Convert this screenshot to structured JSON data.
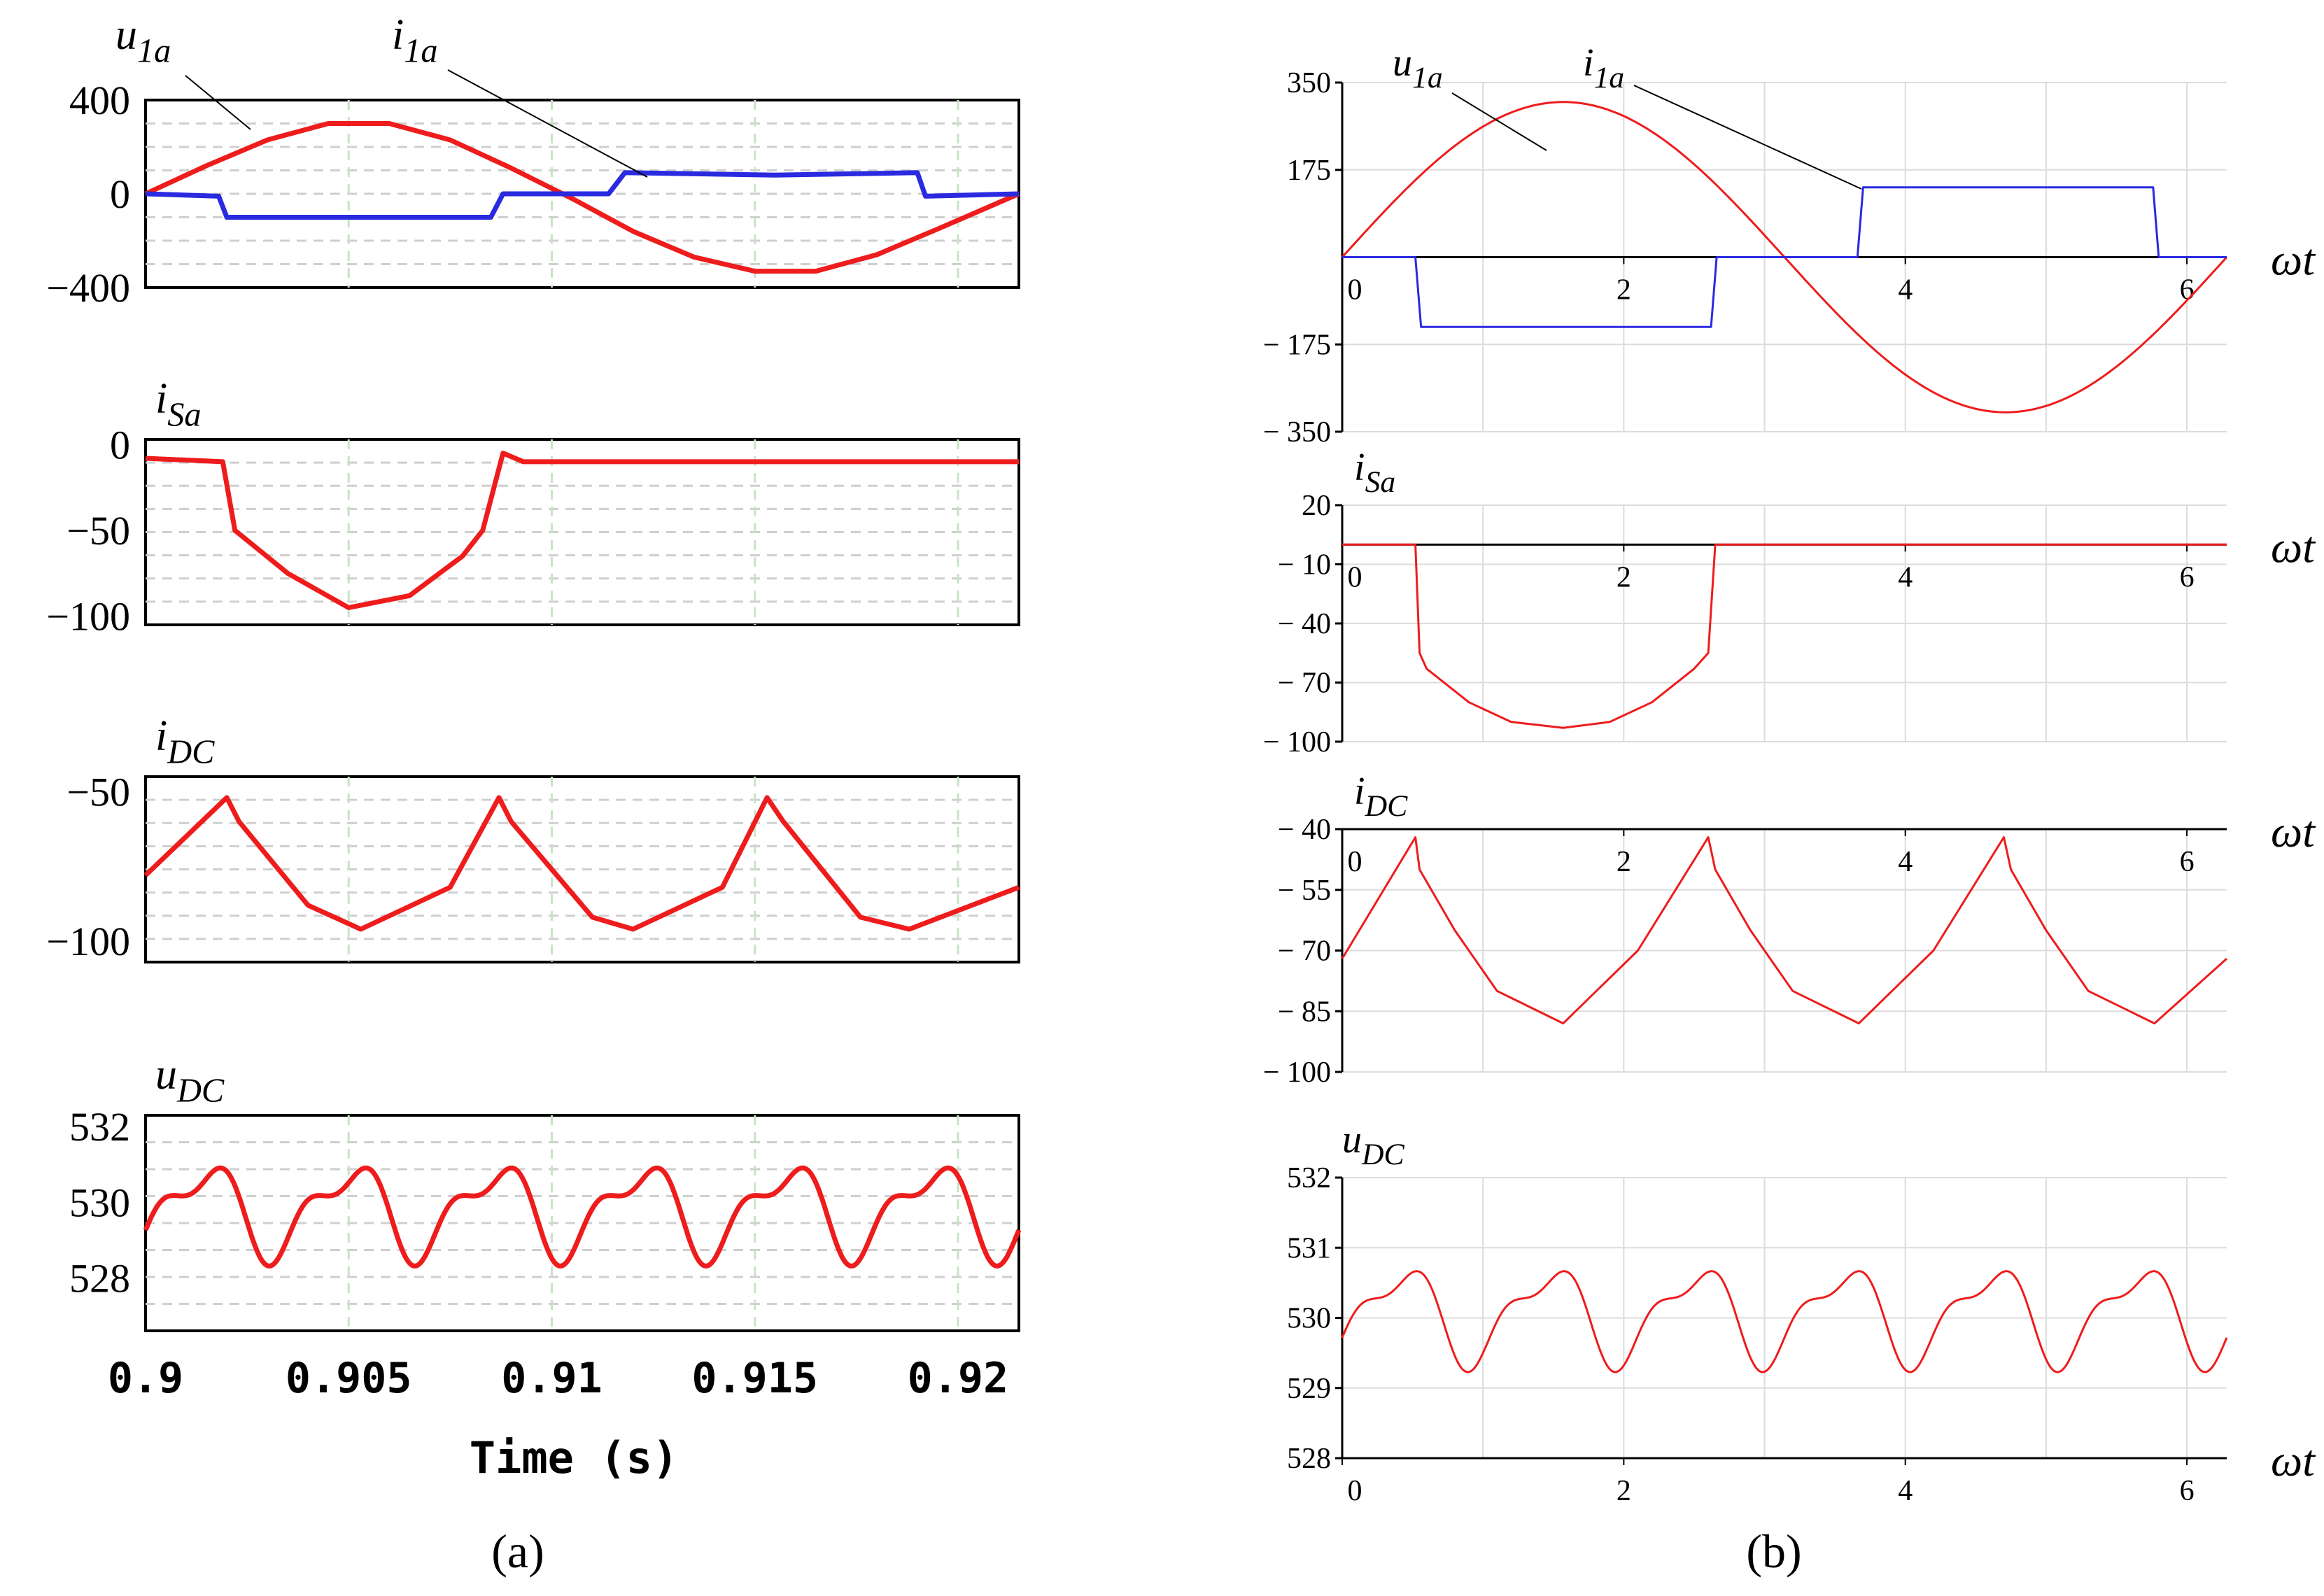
{
  "chart_data": [
    {
      "panel": "a",
      "type": "line",
      "xlabel": "Time (s)",
      "x_range": [
        0.9,
        0.9215
      ],
      "x_ticks": [
        0.9,
        0.905,
        0.91,
        0.915,
        0.92
      ],
      "x_tick_labels": [
        "0.9",
        "0.905",
        "0.91",
        "0.915",
        "0.92"
      ],
      "caption": "(a)",
      "line_color": "#ee1c1c",
      "line_color_2": "#2a2ae0",
      "grid_color": "#c8e4c4",
      "subplots": [
        {
          "name": "voltage-current",
          "ylim": [
            -400,
            400
          ],
          "y_ticks": [
            400,
            0,
            -400
          ],
          "y_tick_labels": [
            "400",
            "0",
            "−400"
          ],
          "series": [
            {
              "name": "u1a",
              "label": "u",
              "sub": "1a",
              "color": "#ee1c1c",
              "x": [
                0.9,
                0.9015,
                0.903,
                0.9045,
                0.906,
                0.9075,
                0.909,
                0.9105,
                0.912,
                0.9135,
                0.915,
                0.9165,
                0.918,
                0.9195,
                0.9215
              ],
              "y": [
                0,
                120,
                230,
                300,
                300,
                230,
                110,
                -20,
                -160,
                -270,
                -330,
                -330,
                -260,
                -150,
                0
              ]
            },
            {
              "name": "i1a",
              "label": "i",
              "sub": "1a",
              "color": "#2a2ae0",
              "x": [
                0.9,
                0.9018,
                0.902,
                0.9085,
                0.9088,
                0.9114,
                0.9118,
                0.9155,
                0.919,
                0.9192,
                0.9215
              ],
              "y": [
                0,
                -10,
                -100,
                -100,
                0,
                0,
                90,
                80,
                90,
                -10,
                0
              ]
            }
          ]
        },
        {
          "name": "iSa",
          "label": "i",
          "sub": "Sa",
          "ylim": [
            -105,
            3
          ],
          "y_ticks": [
            0,
            -50,
            -100
          ],
          "y_tick_labels": [
            "0",
            "−50",
            "−100"
          ],
          "series": [
            {
              "name": "iSa",
              "color": "#ee1c1c",
              "x": [
                0.9,
                0.9019,
                0.9022,
                0.9035,
                0.905,
                0.9065,
                0.9078,
                0.9083,
                0.9088,
                0.9093,
                0.9215
              ],
              "y": [
                -8,
                -10,
                -50,
                -75,
                -95,
                -88,
                -65,
                -50,
                -5,
                -10,
                -10
              ]
            }
          ]
        },
        {
          "name": "iDC",
          "label": "i",
          "sub": "DC",
          "ylim": [
            -107,
            -45
          ],
          "y_ticks": [
            -50,
            -100
          ],
          "y_tick_labels": [
            "−50",
            "−100"
          ],
          "series": [
            {
              "name": "iDC",
              "color": "#ee1c1c",
              "x": [
                0.9,
                0.902,
                0.9023,
                0.904,
                0.9053,
                0.9075,
                0.9087,
                0.909,
                0.911,
                0.912,
                0.9142,
                0.9153,
                0.9157,
                0.9176,
                0.9188,
                0.9215
              ],
              "y": [
                -78,
                -52,
                -60,
                -88,
                -96,
                -82,
                -52,
                -60,
                -92,
                -96,
                -82,
                -52,
                -60,
                -92,
                -96,
                -82
              ]
            }
          ]
        },
        {
          "name": "uDC",
          "label": "u",
          "sub": "DC",
          "ylim": [
            526.6,
            532.3
          ],
          "y_ticks": [
            532,
            530,
            528
          ],
          "y_tick_labels": [
            "532",
            "530",
            "528"
          ],
          "series": [
            {
              "name": "uDC",
              "color": "#ee1c1c",
              "model": "ripple",
              "mean": 529.8,
              "amp_main": 1.9,
              "harmonic": 0.5,
              "cycles": 6,
              "x_start": 0.9,
              "x_end": 0.9215
            }
          ]
        }
      ]
    },
    {
      "panel": "b",
      "type": "line",
      "xlabel": "ωt",
      "x_range": [
        0,
        6.283
      ],
      "x_ticks": [
        0,
        2,
        4,
        6
      ],
      "x_tick_labels": [
        "0",
        "2",
        "4",
        "6"
      ],
      "caption": "(b)",
      "line_color": "#ee1c1c",
      "line_color_2": "#2a2ae0",
      "grid_color": "#dcdcdc",
      "subplots": [
        {
          "name": "voltage-current",
          "ylim": [
            -350,
            350
          ],
          "y_ticks": [
            350,
            175,
            -175,
            -350
          ],
          "y_tick_labels": [
            "350",
            "175",
            "− 175",
            "− 350"
          ],
          "series": [
            {
              "name": "u1a",
              "label": "u",
              "sub": "1a",
              "color": "#ee1c1c",
              "model": "sine",
              "amplitude": 311
            },
            {
              "name": "i1a",
              "label": "i",
              "sub": "1a",
              "color": "#2a2ae0",
              "x": [
                0,
                0.52,
                0.56,
                2.62,
                2.66,
                3.66,
                3.7,
                5.76,
                5.8,
                6.283
              ],
              "y": [
                0,
                0,
                -140,
                -140,
                0,
                0,
                140,
                140,
                0,
                0
              ]
            }
          ]
        },
        {
          "name": "iSa",
          "label": "i",
          "sub": "Sa",
          "ylim": [
            -100,
            20
          ],
          "y_ticks": [
            20,
            -10,
            -40,
            -70,
            -100
          ],
          "y_tick_labels": [
            "20",
            "− 10",
            "− 40",
            "− 70",
            "− 100"
          ],
          "series": [
            {
              "name": "iSa",
              "color": "#ee1c1c",
              "x": [
                0,
                0.52,
                0.55,
                0.6,
                0.9,
                1.2,
                1.57,
                1.9,
                2.2,
                2.5,
                2.6,
                2.65,
                2.68,
                6.283
              ],
              "y": [
                0,
                0,
                -55,
                -63,
                -80,
                -90,
                -93,
                -90,
                -80,
                -63,
                -55,
                0,
                0,
                0
              ]
            }
          ]
        },
        {
          "name": "iDC",
          "label": "i",
          "sub": "DC",
          "ylim": [
            -100,
            -40
          ],
          "y_ticks": [
            -40,
            -55,
            -70,
            -85,
            -100
          ],
          "y_tick_labels": [
            "− 40",
            "− 55",
            "− 70",
            "− 85",
            "− 100"
          ],
          "series": [
            {
              "name": "iDC",
              "color": "#ee1c1c",
              "x": [
                0,
                0.52,
                0.55,
                0.8,
                1.1,
                1.57,
                2.1,
                2.6,
                2.65,
                2.9,
                3.2,
                3.67,
                4.2,
                4.7,
                4.75,
                5.0,
                5.3,
                5.77,
                6.283
              ],
              "y": [
                -72,
                -42,
                -50,
                -65,
                -80,
                -88,
                -70,
                -42,
                -50,
                -65,
                -80,
                -88,
                -70,
                -42,
                -50,
                -65,
                -80,
                -88,
                -72
              ]
            }
          ]
        },
        {
          "name": "uDC",
          "label": "u",
          "sub": "DC",
          "ylim": [
            528,
            532
          ],
          "y_ticks": [
            532,
            531,
            530,
            529,
            528
          ],
          "y_tick_labels": [
            "532",
            "531",
            "530",
            "529",
            "528"
          ],
          "series": [
            {
              "name": "uDC",
              "color": "#ee1c1c",
              "model": "ripple",
              "mean": 530.05,
              "amp_main": 1.1,
              "harmonic": 0.25,
              "cycles": 6,
              "x_start": 0,
              "x_end": 6.283
            }
          ]
        }
      ]
    }
  ]
}
